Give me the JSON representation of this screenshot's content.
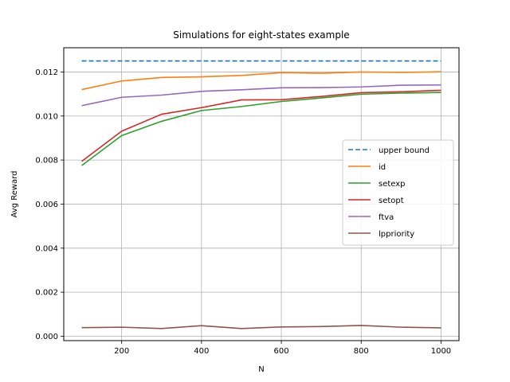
{
  "chart_data": {
    "type": "line",
    "title": "Simulations for eight-states example",
    "xlabel": "N",
    "ylabel": "Avg Reward",
    "xlim": [
      55,
      1045
    ],
    "ylim": [
      -0.0002,
      0.0131
    ],
    "xticks": [
      200,
      400,
      600,
      800,
      1000
    ],
    "yticks": [
      0.0,
      0.002,
      0.004,
      0.006,
      0.008,
      0.01,
      0.012
    ],
    "ytick_labels": [
      "0.000",
      "0.002",
      "0.004",
      "0.006",
      "0.008",
      "0.010",
      "0.012"
    ],
    "grid": true,
    "legend_position": "center-right",
    "x": [
      100,
      200,
      300,
      400,
      500,
      600,
      700,
      800,
      900,
      1000
    ],
    "series": [
      {
        "name": "upper bound",
        "color": "#1f77b4",
        "dashed": true,
        "values": [
          0.0125,
          0.0125,
          0.0125,
          0.0125,
          0.0125,
          0.0125,
          0.0125,
          0.0125,
          0.0125,
          0.0125
        ]
      },
      {
        "name": "id",
        "color": "#ff7f0e",
        "dashed": false,
        "values": [
          0.0112,
          0.01159,
          0.01175,
          0.01178,
          0.01184,
          0.01197,
          0.01194,
          0.012,
          0.01198,
          0.01201
        ]
      },
      {
        "name": "setexp",
        "color": "#2ca02c",
        "dashed": false,
        "values": [
          0.00775,
          0.00911,
          0.00976,
          0.01025,
          0.01043,
          0.01066,
          0.01082,
          0.01099,
          0.01104,
          0.01107
        ]
      },
      {
        "name": "setopt",
        "color": "#d62728",
        "dashed": false,
        "values": [
          0.00794,
          0.00931,
          0.01008,
          0.01038,
          0.01073,
          0.01074,
          0.01089,
          0.01106,
          0.0111,
          0.01117
        ]
      },
      {
        "name": "ftva",
        "color": "#9467bd",
        "dashed": false,
        "values": [
          0.01047,
          0.01085,
          0.01095,
          0.01112,
          0.01119,
          0.01128,
          0.01129,
          0.01132,
          0.0114,
          0.01141
        ]
      },
      {
        "name": "lppriority",
        "color": "#8c564b",
        "dashed": false,
        "values": [
          0.00039,
          0.00041,
          0.00035,
          0.00048,
          0.00035,
          0.00042,
          0.00044,
          0.00049,
          0.00041,
          0.00038
        ]
      }
    ]
  }
}
